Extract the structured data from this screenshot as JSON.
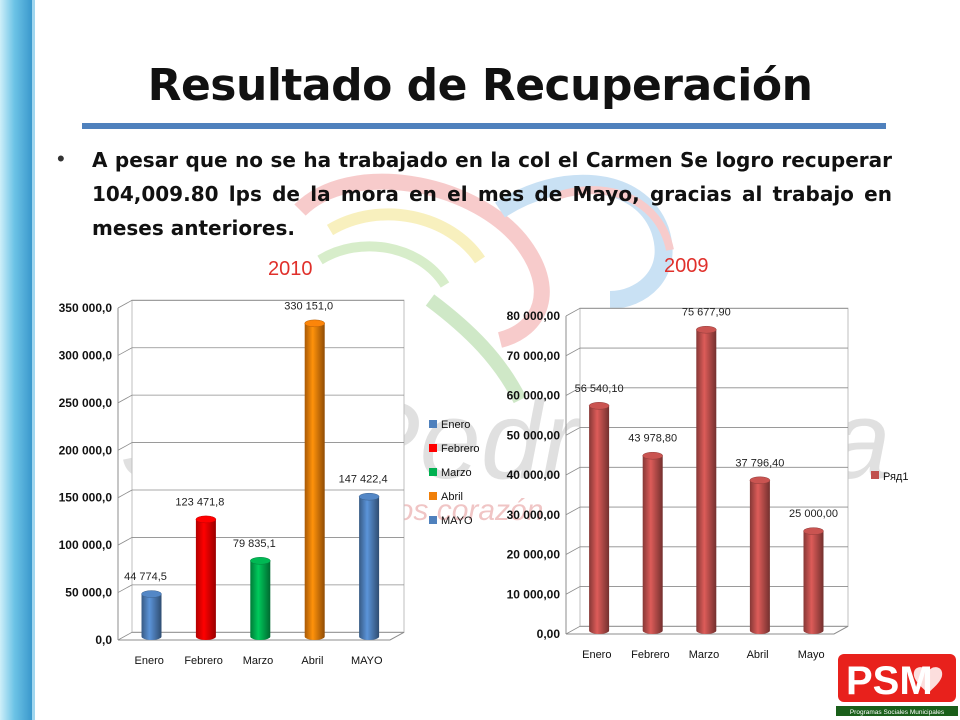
{
  "slide": {
    "title": "Resultado de Recuperación",
    "bullet": "A pesar que no se ha trabajado en la col el Carmen Se logro recuperar 104,009.80 lps de la mora en el mes de Mayo, gracias al trabajo en meses anteriores."
  },
  "watermark": {
    "text": "San Pedro Sula",
    "tagline": "somos corazón"
  },
  "logo": {
    "acronym": "PSM",
    "caption": "Programas Sociales Municipales",
    "icon": "heart-flag-icon"
  },
  "colors": {
    "accent": "#4f81bd",
    "title_red": "#e0302b"
  },
  "chart_data": [
    {
      "type": "bar",
      "title": "2010",
      "categories": [
        "Enero",
        "Febrero",
        "Marzo",
        "Abril",
        "MAYO"
      ],
      "values": [
        44774.5,
        123471.8,
        79835.1,
        330151.0,
        147422.4
      ],
      "value_labels": [
        "44 774,5",
        "123 471,8",
        "79 835,1",
        "330 151,0",
        "147 422,4"
      ],
      "colors": [
        "#4f81bd",
        "#ff0000",
        "#00b050",
        "#f07f09",
        "#4f81bd"
      ],
      "ylim": [
        0,
        350000
      ],
      "yticks": [
        "0,0",
        "50 000,0",
        "100 000,0",
        "150 000,0",
        "200 000,0",
        "250 000,0",
        "300 000,0",
        "350 000,0"
      ],
      "legend": [
        "Enero",
        "Febrero",
        "Marzo",
        "Abril",
        "MAYO"
      ],
      "legend_position": "right",
      "grid": true
    },
    {
      "type": "bar",
      "title": "2009",
      "categories": [
        "Enero",
        "Febrero",
        "Marzo",
        "Abril",
        "Mayo"
      ],
      "values": [
        56540.1,
        43978.8,
        75677.9,
        37796.4,
        25000.0
      ],
      "value_labels": [
        "56 540,10",
        "43 978,80",
        "75 677,90",
        "37 796,40",
        "25 000,00"
      ],
      "series": [
        {
          "name": "Ряд1",
          "color": "#c0504d"
        }
      ],
      "ylim": [
        0,
        80000
      ],
      "yticks": [
        "0,00",
        "10 000,00",
        "20 000,00",
        "30 000,00",
        "40 000,00",
        "50 000,00",
        "60 000,00",
        "70 000,00",
        "80 000,00"
      ],
      "legend_position": "right",
      "grid": true
    }
  ]
}
